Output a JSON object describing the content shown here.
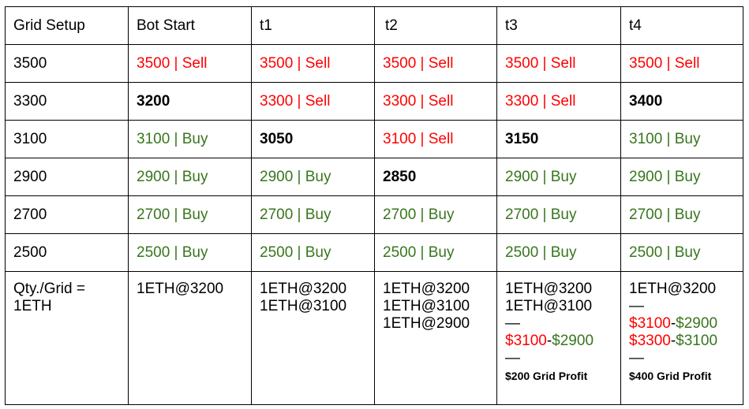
{
  "headers": [
    "Grid Setup",
    "Bot Start",
    "t1",
    "t2",
    "t3",
    "t4"
  ],
  "colors": {
    "sell": "#ff0000",
    "buy": "#38761d"
  },
  "rows": [
    {
      "level": "3500",
      "cells": [
        {
          "text": "3500 | Sell",
          "kind": "sell"
        },
        {
          "text": "3500 | Sell",
          "kind": "sell"
        },
        {
          "text": "3500 | Sell",
          "kind": "sell"
        },
        {
          "text": "3500 | Sell",
          "kind": "sell"
        },
        {
          "text": "3500 | Sell",
          "kind": "sell"
        }
      ]
    },
    {
      "level": "3300",
      "cells": [
        {
          "text": "3200",
          "kind": "bold"
        },
        {
          "text": "3300 | Sell",
          "kind": "sell"
        },
        {
          "text": "3300 | Sell",
          "kind": "sell"
        },
        {
          "text": "3300 | Sell",
          "kind": "sell"
        },
        {
          "text": "3400",
          "kind": "bold"
        }
      ]
    },
    {
      "level": "3100",
      "cells": [
        {
          "text": "3100 | Buy",
          "kind": "buy"
        },
        {
          "text": "3050",
          "kind": "bold"
        },
        {
          "text": "3100 | Sell",
          "kind": "sell"
        },
        {
          "text": "3150",
          "kind": "bold"
        },
        {
          "text": "3100 | Buy",
          "kind": "buy"
        }
      ]
    },
    {
      "level": "2900",
      "cells": [
        {
          "text": "2900 | Buy",
          "kind": "buy"
        },
        {
          "text": "2900 | Buy",
          "kind": "buy"
        },
        {
          "text": "2850",
          "kind": "bold"
        },
        {
          "text": "2900 | Buy",
          "kind": "buy"
        },
        {
          "text": "2900 | Buy",
          "kind": "buy"
        }
      ]
    },
    {
      "level": "2700",
      "cells": [
        {
          "text": "2700 | Buy",
          "kind": "buy"
        },
        {
          "text": "2700 | Buy",
          "kind": "buy"
        },
        {
          "text": "2700 | Buy",
          "kind": "buy"
        },
        {
          "text": "2700 | Buy",
          "kind": "buy"
        },
        {
          "text": "2700 | Buy",
          "kind": "buy"
        }
      ]
    },
    {
      "level": "2500",
      "cells": [
        {
          "text": "2500 | Buy",
          "kind": "buy"
        },
        {
          "text": "2500 | Buy",
          "kind": "buy"
        },
        {
          "text": "2500 | Buy",
          "kind": "buy"
        },
        {
          "text": "2500 | Buy",
          "kind": "buy"
        },
        {
          "text": "2500 | Buy",
          "kind": "buy"
        }
      ]
    }
  ],
  "qty": {
    "label": "Qty./Grid = 1ETH",
    "bot_start": [
      "1ETH@3200"
    ],
    "t1": [
      "1ETH@3200",
      "1ETH@3100"
    ],
    "t2": [
      "1ETH@3200",
      "1ETH@3100",
      "1ETH@2900"
    ],
    "t3": {
      "holdings": [
        "1ETH@3200",
        "1ETH@3100"
      ],
      "separator": "—",
      "pairs": [
        {
          "sell": "$3100",
          "dash": "-",
          "buy": "$2900"
        }
      ],
      "profit": "$200 Grid Profit"
    },
    "t4": {
      "holdings": [
        "1ETH@3200"
      ],
      "separator": "—",
      "pairs": [
        {
          "sell": "$3100",
          "dash": "-",
          "buy": "$2900"
        },
        {
          "sell": "$3300",
          "dash": "-",
          "buy": "$3100"
        }
      ],
      "profit": "$400 Grid Profit"
    }
  }
}
